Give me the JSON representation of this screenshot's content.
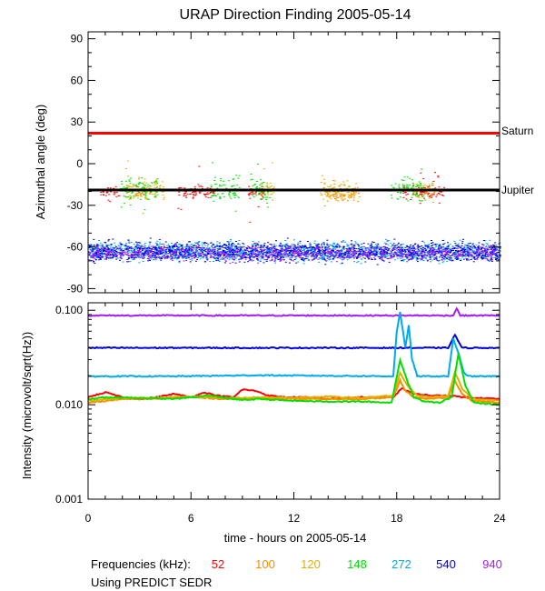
{
  "chart_data": [
    {
      "type": "scatter",
      "title": "URAP Direction Finding  2005-05-14",
      "xlabel": "",
      "ylabel": "Azimuthal angle (deg)",
      "xlim": [
        0,
        24
      ],
      "ylim": [
        -93,
        95
      ],
      "yticks": [
        {
          "value": 90,
          "label": "90"
        },
        {
          "value": 60,
          "label": "60"
        },
        {
          "value": 30,
          "label": "30"
        },
        {
          "value": 0,
          "label": "0"
        },
        {
          "value": -30,
          "label": "-30"
        },
        {
          "value": -60,
          "label": "-60"
        },
        {
          "value": -90,
          "label": "-90"
        }
      ],
      "reference_lines": [
        {
          "name": "Saturn",
          "value": 22,
          "color": "#ff0000"
        },
        {
          "name": "Jupiter",
          "value": -19,
          "color": "#000000"
        }
      ],
      "series": [
        {
          "name": "52",
          "color": "#ff0000",
          "center": -20,
          "spread": 3,
          "segments": [
            [
              0.7,
              1.8
            ],
            [
              5.2,
              7.3
            ],
            [
              9.3,
              10.2
            ],
            [
              18.3,
              20.8
            ]
          ]
        },
        {
          "name": "100",
          "color": "#ff8c00",
          "center": -21,
          "spread": 4,
          "segments": [
            [
              2.6,
              3.3
            ],
            [
              13.7,
              15.8
            ]
          ]
        },
        {
          "name": "120",
          "color": "#e0b000",
          "center": -19,
          "spread": 5,
          "segments": [
            [
              2.1,
              4.4
            ],
            [
              10.0,
              10.9
            ],
            [
              13.5,
              15.6
            ],
            [
              18.9,
              20.2
            ]
          ]
        },
        {
          "name": "148",
          "color": "#00e000",
          "center": -18,
          "spread": 6,
          "segments": [
            [
              1.8,
              4.0
            ],
            [
              7.1,
              8.8
            ],
            [
              9.4,
              10.6
            ],
            [
              17.6,
              19.6
            ]
          ]
        },
        {
          "name": "272",
          "color": "#00aaee",
          "center": -63,
          "spread": 5,
          "segments": [
            [
              0,
              24
            ]
          ]
        },
        {
          "name": "540",
          "color": "#0000dd",
          "center": -63,
          "spread": 5,
          "segments": [
            [
              0,
              24
            ]
          ]
        },
        {
          "name": "940",
          "color": "#a020f0",
          "center": -64,
          "spread": 4,
          "segments": [
            [
              0,
              24
            ]
          ]
        }
      ]
    },
    {
      "type": "line",
      "ylabel": "Intensity (microvolt/sqrt(Hz))",
      "xlabel": "time - hours on 2005-05-14",
      "xlim": [
        0,
        24
      ],
      "ylim": [
        0.001,
        0.12
      ],
      "yscale": "log",
      "xticks": [
        {
          "value": 0,
          "label": "0"
        },
        {
          "value": 6,
          "label": "6"
        },
        {
          "value": 12,
          "label": "12"
        },
        {
          "value": 18,
          "label": "18"
        },
        {
          "value": 24,
          "label": "24"
        }
      ],
      "yticks": [
        {
          "value": 0.1,
          "label": "0.100"
        },
        {
          "value": 0.01,
          "label": "0.010"
        },
        {
          "value": 0.001,
          "label": "0.001"
        }
      ],
      "series": [
        {
          "name": "940",
          "color": "#a020f0",
          "x": [
            0,
            21.3,
            21.5,
            21.7,
            24
          ],
          "y": [
            0.088,
            0.088,
            0.105,
            0.088,
            0.088
          ]
        },
        {
          "name": "540",
          "color": "#0000dd",
          "x": [
            0,
            21.0,
            21.4,
            21.8,
            24
          ],
          "y": [
            0.04,
            0.04,
            0.055,
            0.04,
            0.04
          ]
        },
        {
          "name": "272",
          "color": "#00aaee",
          "x": [
            0,
            5.0,
            10.0,
            17.8,
            18.0,
            18.2,
            18.5,
            18.7,
            18.9,
            19.2,
            21.0,
            21.3,
            21.6,
            21.9,
            22.2,
            24
          ],
          "y": [
            0.02,
            0.02,
            0.0205,
            0.02,
            0.06,
            0.095,
            0.04,
            0.07,
            0.03,
            0.02,
            0.02,
            0.05,
            0.035,
            0.022,
            0.02,
            0.02
          ]
        },
        {
          "name": "52",
          "color": "#ff0000",
          "x": [
            0,
            1.0,
            2.0,
            3.0,
            4.0,
            5.0,
            6.0,
            6.8,
            7.5,
            8.5,
            9.0,
            9.8,
            10.5,
            11.5,
            12.5,
            14,
            16,
            17.8,
            18.3,
            19,
            20,
            21,
            22,
            24
          ],
          "y": [
            0.012,
            0.0135,
            0.012,
            0.0115,
            0.012,
            0.013,
            0.012,
            0.0135,
            0.0125,
            0.012,
            0.0145,
            0.014,
            0.0125,
            0.012,
            0.012,
            0.0115,
            0.012,
            0.012,
            0.015,
            0.013,
            0.0125,
            0.0125,
            0.012,
            0.0115
          ]
        },
        {
          "name": "100",
          "color": "#ff8c00",
          "x": [
            0,
            2,
            4,
            6,
            8,
            10,
            12,
            14,
            16,
            17.8,
            18.2,
            18.5,
            19,
            20,
            21,
            21.4,
            21.8,
            22.4,
            24
          ],
          "y": [
            0.0105,
            0.0115,
            0.0115,
            0.012,
            0.0115,
            0.0115,
            0.0115,
            0.0115,
            0.0115,
            0.012,
            0.018,
            0.014,
            0.012,
            0.0115,
            0.012,
            0.018,
            0.013,
            0.011,
            0.0105
          ]
        },
        {
          "name": "120",
          "color": "#e0b000",
          "x": [
            0,
            2,
            4,
            6,
            8,
            10,
            12,
            14,
            16,
            17.8,
            18.2,
            18.6,
            19.2,
            20,
            21,
            21.4,
            21.8,
            22.4,
            24
          ],
          "y": [
            0.011,
            0.0118,
            0.0118,
            0.0122,
            0.0118,
            0.012,
            0.0118,
            0.0122,
            0.0118,
            0.0125,
            0.022,
            0.016,
            0.0125,
            0.012,
            0.0125,
            0.022,
            0.015,
            0.0115,
            0.011
          ]
        },
        {
          "name": "148",
          "color": "#00e000",
          "x": [
            0,
            1,
            3,
            5,
            6,
            7,
            8,
            9,
            10,
            12,
            14,
            16,
            17.7,
            18.2,
            18.6,
            19.0,
            19.5,
            20.5,
            21.2,
            21.6,
            22.0,
            22.5,
            24
          ],
          "y": [
            0.0115,
            0.012,
            0.0118,
            0.0115,
            0.012,
            0.0125,
            0.0118,
            0.0112,
            0.0115,
            0.011,
            0.0108,
            0.0108,
            0.0105,
            0.03,
            0.018,
            0.012,
            0.011,
            0.0105,
            0.012,
            0.035,
            0.016,
            0.0105,
            0.01
          ]
        }
      ]
    }
  ],
  "legend": {
    "label": "Frequencies (kHz):",
    "items": [
      {
        "name": "52",
        "color": "#ff0000"
      },
      {
        "name": "100",
        "color": "#ff8c00"
      },
      {
        "name": "120",
        "color": "#e0b000"
      },
      {
        "name": "148",
        "color": "#00e000"
      },
      {
        "name": "272",
        "color": "#00aaee"
      },
      {
        "name": "540",
        "color": "#0000dd"
      },
      {
        "name": "940",
        "color": "#a020f0"
      }
    ]
  },
  "footer": {
    "source_note": "Using PREDICT SEDR"
  }
}
